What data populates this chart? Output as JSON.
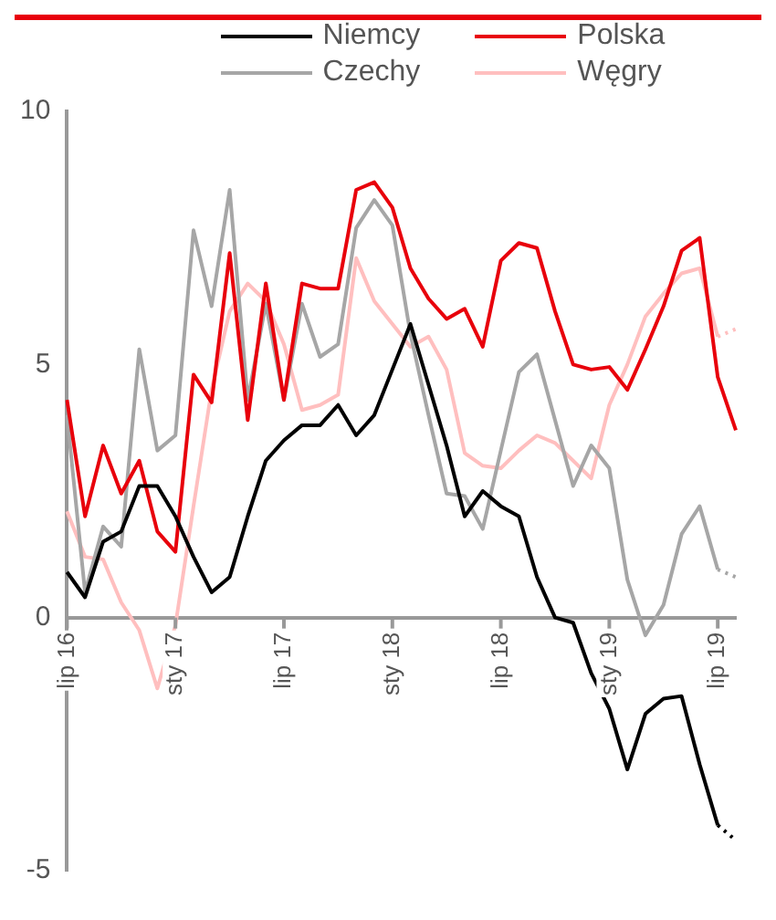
{
  "chart_data": {
    "type": "line",
    "categories": [
      "lip 16",
      null,
      null,
      null,
      null,
      null,
      "sty 17",
      null,
      null,
      null,
      null,
      null,
      "lip 17",
      null,
      null,
      null,
      null,
      null,
      "sty 18",
      null,
      null,
      null,
      null,
      null,
      "lip 18",
      null,
      null,
      null,
      null,
      null,
      "sty 19",
      null,
      null,
      null,
      null,
      null,
      "lip 19",
      null
    ],
    "series": [
      {
        "name": "Niemcy",
        "color": "#000000",
        "values": [
          0.9,
          0.4,
          1.5,
          1.7,
          2.6,
          2.6,
          2.0,
          1.2,
          0.5,
          0.8,
          2.0,
          3.1,
          3.5,
          3.8,
          3.8,
          4.2,
          3.6,
          4.0,
          4.9,
          5.8,
          4.6,
          3.4,
          2.0,
          2.5,
          2.2,
          2.0,
          0.8,
          0.0,
          -0.1,
          -1.1,
          -1.8,
          -3.0,
          -1.9,
          -1.6,
          -1.55,
          -2.9,
          -4.1,
          null
        ]
      },
      {
        "name": "Polska",
        "color": "#e8000b",
        "values": [
          4.3,
          2.0,
          3.4,
          2.45,
          3.1,
          1.7,
          1.3,
          4.8,
          4.25,
          7.2,
          3.9,
          6.6,
          4.3,
          6.6,
          6.5,
          6.5,
          8.45,
          8.6,
          8.1,
          6.9,
          6.3,
          5.9,
          6.1,
          5.35,
          7.05,
          7.4,
          7.3,
          6.05,
          5.0,
          4.9,
          4.95,
          4.5,
          5.3,
          6.15,
          7.25,
          7.5,
          4.75,
          3.7
        ]
      },
      {
        "name": "Czechy",
        "color": "#a6a6a6",
        "values": [
          4.0,
          0.5,
          1.8,
          1.4,
          5.3,
          3.3,
          3.6,
          7.65,
          6.15,
          8.45,
          4.3,
          6.2,
          4.3,
          6.2,
          5.15,
          5.4,
          7.7,
          8.25,
          7.75,
          5.6,
          4.0,
          2.45,
          2.4,
          1.75,
          3.3,
          4.85,
          5.2,
          3.9,
          2.6,
          3.4,
          2.95,
          0.75,
          -0.35,
          0.25,
          1.65,
          2.2,
          0.95,
          null
        ]
      },
      {
        "name": "Węgry",
        "color": "#ffbfbf",
        "values": [
          2.1,
          1.2,
          1.15,
          0.3,
          -0.25,
          -1.4,
          -0.15,
          2.2,
          4.5,
          6.05,
          6.6,
          6.25,
          5.4,
          4.1,
          4.2,
          4.4,
          7.1,
          6.25,
          5.8,
          5.35,
          5.55,
          4.9,
          3.25,
          3.0,
          2.95,
          3.3,
          3.6,
          3.45,
          3.1,
          2.75,
          4.2,
          5.0,
          5.95,
          6.4,
          6.8,
          6.9,
          5.55,
          null
        ]
      },
      {
        "color": "#000000",
        "line_style": "dotted",
        "values": [
          null,
          null,
          null,
          null,
          null,
          null,
          null,
          null,
          null,
          null,
          null,
          null,
          null,
          null,
          null,
          null,
          null,
          null,
          null,
          null,
          null,
          null,
          null,
          null,
          null,
          null,
          null,
          null,
          null,
          null,
          null,
          null,
          null,
          null,
          null,
          null,
          -4.1,
          -4.4
        ]
      },
      {
        "color": "#a6a6a6",
        "line_style": "dotted",
        "values": [
          null,
          null,
          null,
          null,
          null,
          null,
          null,
          null,
          null,
          null,
          null,
          null,
          null,
          null,
          null,
          null,
          null,
          null,
          null,
          null,
          null,
          null,
          null,
          null,
          null,
          null,
          null,
          null,
          null,
          null,
          null,
          null,
          null,
          null,
          null,
          null,
          0.95,
          0.8
        ]
      },
      {
        "color": "#ffbfbf",
        "line_style": "dotted",
        "values": [
          null,
          null,
          null,
          null,
          null,
          null,
          null,
          null,
          null,
          null,
          null,
          null,
          null,
          null,
          null,
          null,
          null,
          null,
          null,
          null,
          null,
          null,
          null,
          null,
          null,
          null,
          null,
          null,
          null,
          null,
          null,
          null,
          null,
          null,
          null,
          null,
          5.55,
          5.7
        ]
      }
    ],
    "ylim": [
      -5,
      10
    ],
    "yticks": [
      -5,
      0,
      5,
      10
    ],
    "legend": "top",
    "marker": "none",
    "line_style": "solid"
  }
}
